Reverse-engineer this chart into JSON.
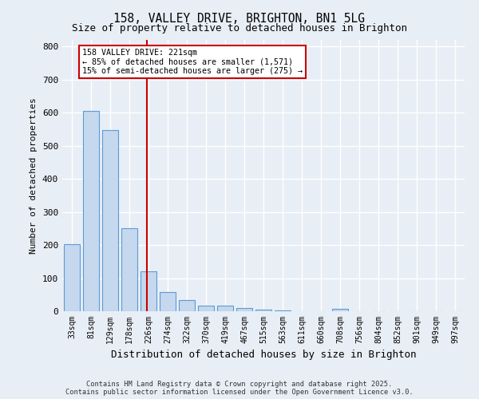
{
  "title1": "158, VALLEY DRIVE, BRIGHTON, BN1 5LG",
  "title2": "Size of property relative to detached houses in Brighton",
  "xlabel": "Distribution of detached houses by size in Brighton",
  "ylabel": "Number of detached properties",
  "bar_values": [
    203,
    605,
    547,
    252,
    120,
    59,
    34,
    18,
    16,
    10,
    4,
    2,
    0,
    0,
    8,
    0,
    0,
    0,
    0,
    0,
    0
  ],
  "categories": [
    "33sqm",
    "81sqm",
    "129sqm",
    "178sqm",
    "226sqm",
    "274sqm",
    "322sqm",
    "370sqm",
    "419sqm",
    "467sqm",
    "515sqm",
    "563sqm",
    "611sqm",
    "660sqm",
    "708sqm",
    "756sqm",
    "804sqm",
    "852sqm",
    "901sqm",
    "949sqm",
    "997sqm"
  ],
  "bar_color": "#c5d8ed",
  "bar_edge_color": "#5b9bd5",
  "vline_color": "#cc0000",
  "annotation_text": "158 VALLEY DRIVE: 221sqm\n← 85% of detached houses are smaller (1,571)\n15% of semi-detached houses are larger (275) →",
  "annotation_box_color": "#ffffff",
  "annotation_box_edge": "#cc0000",
  "ylim": [
    0,
    820
  ],
  "yticks": [
    0,
    100,
    200,
    300,
    400,
    500,
    600,
    700,
    800
  ],
  "bg_color": "#e8eef5",
  "grid_color": "#ffffff",
  "footnote": "Contains HM Land Registry data © Crown copyright and database right 2025.\nContains public sector information licensed under the Open Government Licence v3.0."
}
